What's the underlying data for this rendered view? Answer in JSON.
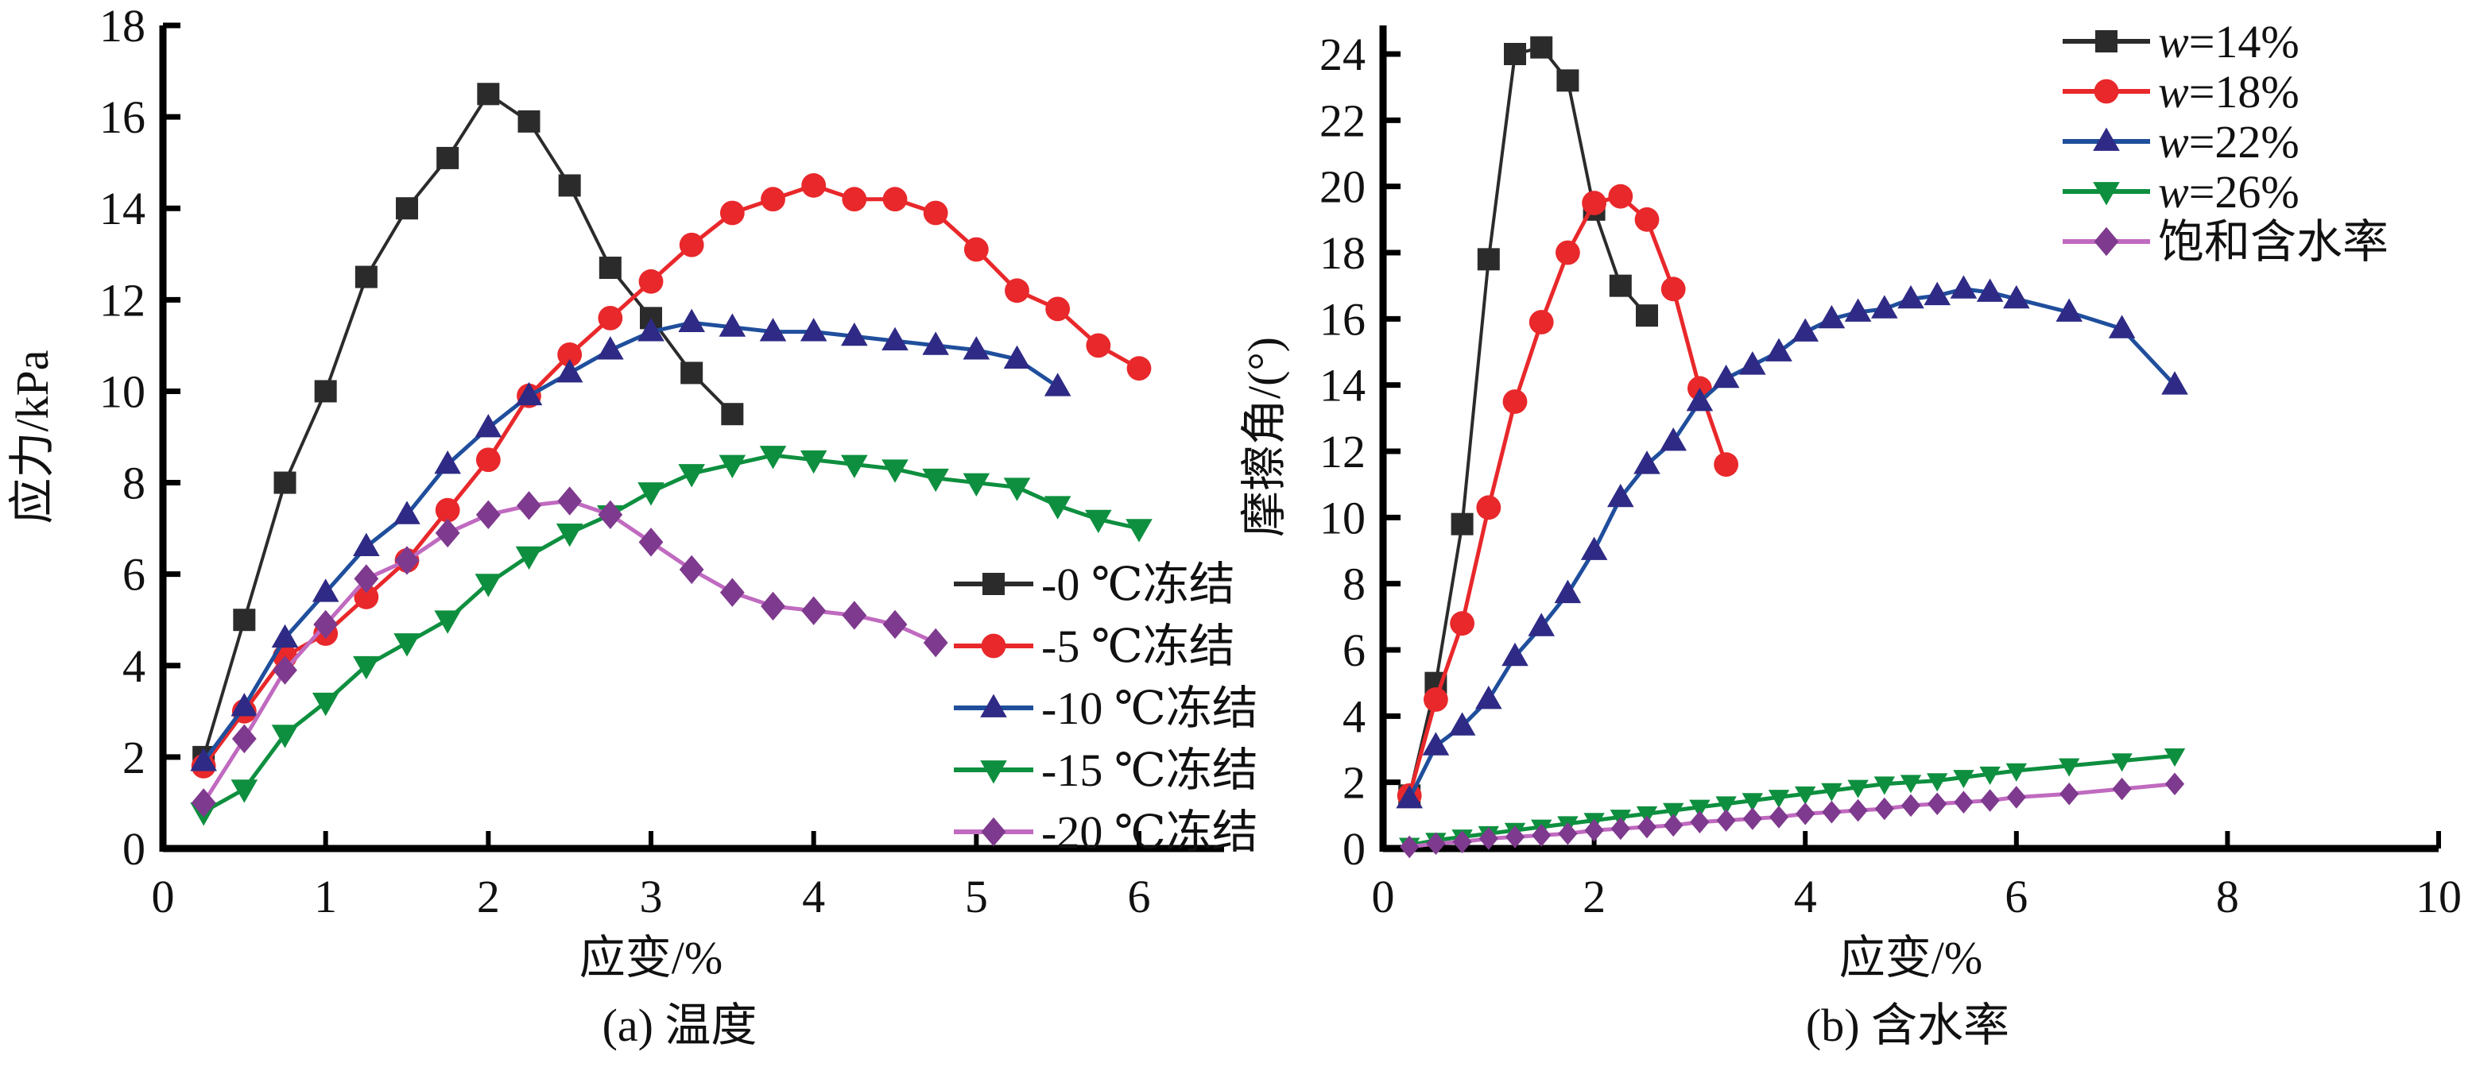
{
  "chart_data": [
    {
      "id": "a",
      "type": "line",
      "caption": "(a) 温度",
      "xlabel": "应变/%",
      "ylabel": "应力/kPa",
      "xlim": [
        0,
        6.5
      ],
      "ylim": [
        0,
        18
      ],
      "xticks": [
        0,
        1,
        2,
        3,
        4,
        5,
        6
      ],
      "yticks": [
        0,
        2,
        4,
        6,
        8,
        10,
        12,
        14,
        16,
        18
      ],
      "grid": false,
      "legend_position": "lower-right",
      "series": [
        {
          "name": "-0 ℃冻结",
          "color": "#2b2b2b",
          "marker": "square",
          "x": [
            0.25,
            0.5,
            0.75,
            1.0,
            1.25,
            1.5,
            1.75,
            2.0,
            2.25,
            2.5,
            2.75,
            3.0,
            3.25,
            3.5
          ],
          "y": [
            2.0,
            5.0,
            8.0,
            10.0,
            12.5,
            14.0,
            15.1,
            16.5,
            15.9,
            14.5,
            12.7,
            11.6,
            10.4,
            9.5
          ]
        },
        {
          "name": "-5 ℃冻结",
          "color": "#e8282b",
          "marker": "circle",
          "x": [
            0.25,
            0.5,
            0.75,
            1.0,
            1.25,
            1.5,
            1.75,
            2.0,
            2.25,
            2.5,
            2.75,
            3.0,
            3.25,
            3.5,
            3.75,
            4.0,
            4.25,
            4.5,
            4.75,
            5.0,
            5.25,
            5.5,
            5.75,
            6.0
          ],
          "y": [
            1.8,
            3.0,
            4.2,
            4.7,
            5.5,
            6.3,
            7.4,
            8.5,
            9.9,
            10.8,
            11.6,
            12.4,
            13.2,
            13.9,
            14.2,
            14.5,
            14.2,
            14.2,
            13.9,
            13.1,
            12.2,
            11.8,
            11.0,
            10.5
          ]
        },
        {
          "name": "-10 ℃冻结",
          "color": "#1f4e9c",
          "marker_color": "#2e2a85",
          "marker": "triangle-up",
          "x": [
            0.25,
            0.5,
            0.75,
            1.0,
            1.25,
            1.5,
            1.75,
            2.0,
            2.25,
            2.5,
            2.75,
            3.0,
            3.25,
            3.5,
            3.75,
            4.0,
            4.25,
            4.5,
            4.75,
            5.0,
            5.25,
            5.5
          ],
          "y": [
            1.9,
            3.1,
            4.6,
            5.6,
            6.6,
            7.3,
            8.4,
            9.2,
            9.9,
            10.4,
            10.9,
            11.3,
            11.5,
            11.4,
            11.3,
            11.3,
            11.2,
            11.1,
            11.0,
            10.9,
            10.7,
            10.1
          ]
        },
        {
          "name": "-15 ℃冻结",
          "color": "#0e8f3f",
          "marker": "triangle-down",
          "x": [
            0.25,
            0.5,
            0.75,
            1.0,
            1.25,
            1.5,
            1.75,
            2.0,
            2.25,
            2.5,
            2.75,
            3.0,
            3.25,
            3.5,
            3.75,
            4.0,
            4.25,
            4.5,
            4.75,
            5.0,
            5.25,
            5.5,
            5.75,
            6.0
          ],
          "y": [
            0.8,
            1.3,
            2.5,
            3.2,
            4.0,
            4.5,
            5.0,
            5.8,
            6.4,
            6.9,
            7.3,
            7.8,
            8.2,
            8.4,
            8.6,
            8.5,
            8.4,
            8.3,
            8.1,
            8.0,
            7.9,
            7.5,
            7.2,
            7.0
          ]
        },
        {
          "name": "-20 ℃冻结",
          "color": "#c06ac0",
          "marker_color": "#7e3a8e",
          "marker": "diamond",
          "x": [
            0.25,
            0.5,
            0.75,
            1.0,
            1.25,
            1.5,
            1.75,
            2.0,
            2.25,
            2.5,
            2.75,
            3.0,
            3.25,
            3.5,
            3.75,
            4.0,
            4.25,
            4.5,
            4.75
          ],
          "y": [
            1.0,
            2.4,
            3.9,
            4.9,
            5.9,
            6.3,
            6.9,
            7.3,
            7.5,
            7.6,
            7.3,
            6.7,
            6.1,
            5.6,
            5.3,
            5.2,
            5.1,
            4.9,
            4.5
          ]
        }
      ]
    },
    {
      "id": "b",
      "type": "line",
      "caption": "(b) 含水率",
      "xlabel": "应变/%",
      "ylabel": "摩擦角/(°)",
      "xlim": [
        0,
        10
      ],
      "ylim": [
        0,
        25
      ],
      "xticks": [
        0,
        2,
        4,
        6,
        8,
        10
      ],
      "yticks": [
        0,
        2,
        4,
        6,
        8,
        10,
        12,
        14,
        16,
        18,
        20,
        22,
        24
      ],
      "grid": false,
      "legend_position": "top-right",
      "series": [
        {
          "name": "w=14%",
          "name_italic": "w",
          "name_rest": "=14%",
          "color": "#2b2b2b",
          "marker": "square",
          "x": [
            0.25,
            0.5,
            0.75,
            1.0,
            1.25,
            1.5,
            1.75,
            2.0,
            2.25,
            2.5
          ],
          "y": [
            1.6,
            5.0,
            9.8,
            17.8,
            24.0,
            24.2,
            23.2,
            19.3,
            17.0,
            16.1
          ]
        },
        {
          "name": "w=18%",
          "name_italic": "w",
          "name_rest": "=18%",
          "color": "#e8282b",
          "marker": "circle",
          "x": [
            0.25,
            0.5,
            0.75,
            1.0,
            1.25,
            1.5,
            1.75,
            2.0,
            2.25,
            2.5,
            2.75,
            3.0,
            3.25
          ],
          "y": [
            1.6,
            4.5,
            6.8,
            10.3,
            13.5,
            15.9,
            18.0,
            19.5,
            19.7,
            19.0,
            16.9,
            13.9,
            11.6
          ]
        },
        {
          "name": "w=22%",
          "name_italic": "w",
          "name_rest": "=22%",
          "color": "#1f4e9c",
          "marker_color": "#2e2a85",
          "marker": "triangle-up",
          "x": [
            0.25,
            0.5,
            0.75,
            1.0,
            1.25,
            1.5,
            1.75,
            2.0,
            2.25,
            2.5,
            2.75,
            3.0,
            3.25,
            3.5,
            3.75,
            4.0,
            4.25,
            4.5,
            4.75,
            5.0,
            5.25,
            5.5,
            5.75,
            6.0,
            6.5,
            7.0,
            7.5
          ],
          "y": [
            1.5,
            3.1,
            3.7,
            4.5,
            5.8,
            6.7,
            7.7,
            9.0,
            10.6,
            11.6,
            12.3,
            13.5,
            14.2,
            14.6,
            15.0,
            15.6,
            16.0,
            16.2,
            16.3,
            16.6,
            16.7,
            16.9,
            16.8,
            16.6,
            16.2,
            15.7,
            14.0
          ]
        },
        {
          "name": "w=26%",
          "name_italic": "w",
          "name_rest": "=26%",
          "color": "#0e8f3f",
          "marker": "triangle-down",
          "x": [
            0.25,
            0.5,
            0.75,
            1.0,
            1.25,
            1.5,
            1.75,
            2.0,
            2.25,
            2.5,
            2.75,
            3.0,
            3.25,
            3.5,
            3.75,
            4.0,
            4.25,
            4.5,
            4.75,
            5.0,
            5.25,
            5.5,
            5.75,
            6.0,
            6.5,
            7.0,
            7.5
          ],
          "y": [
            0.1,
            0.25,
            0.35,
            0.45,
            0.55,
            0.65,
            0.75,
            0.85,
            0.95,
            1.05,
            1.15,
            1.25,
            1.35,
            1.45,
            1.55,
            1.65,
            1.75,
            1.85,
            1.95,
            2.0,
            2.05,
            2.15,
            2.25,
            2.35,
            2.5,
            2.65,
            2.8
          ]
        },
        {
          "name": "饱和含水率",
          "color": "#c06ac0",
          "marker_color": "#7e3a8e",
          "marker": "diamond",
          "x": [
            0.25,
            0.5,
            0.75,
            1.0,
            1.25,
            1.5,
            1.75,
            2.0,
            2.25,
            2.5,
            2.75,
            3.0,
            3.25,
            3.5,
            3.75,
            4.0,
            4.25,
            4.5,
            4.75,
            5.0,
            5.25,
            5.5,
            5.75,
            6.0,
            6.5,
            7.0,
            7.5
          ],
          "y": [
            0.05,
            0.15,
            0.2,
            0.3,
            0.35,
            0.4,
            0.45,
            0.55,
            0.6,
            0.65,
            0.7,
            0.8,
            0.85,
            0.9,
            0.95,
            1.05,
            1.1,
            1.15,
            1.2,
            1.3,
            1.35,
            1.4,
            1.45,
            1.55,
            1.65,
            1.8,
            1.95
          ]
        }
      ]
    }
  ]
}
